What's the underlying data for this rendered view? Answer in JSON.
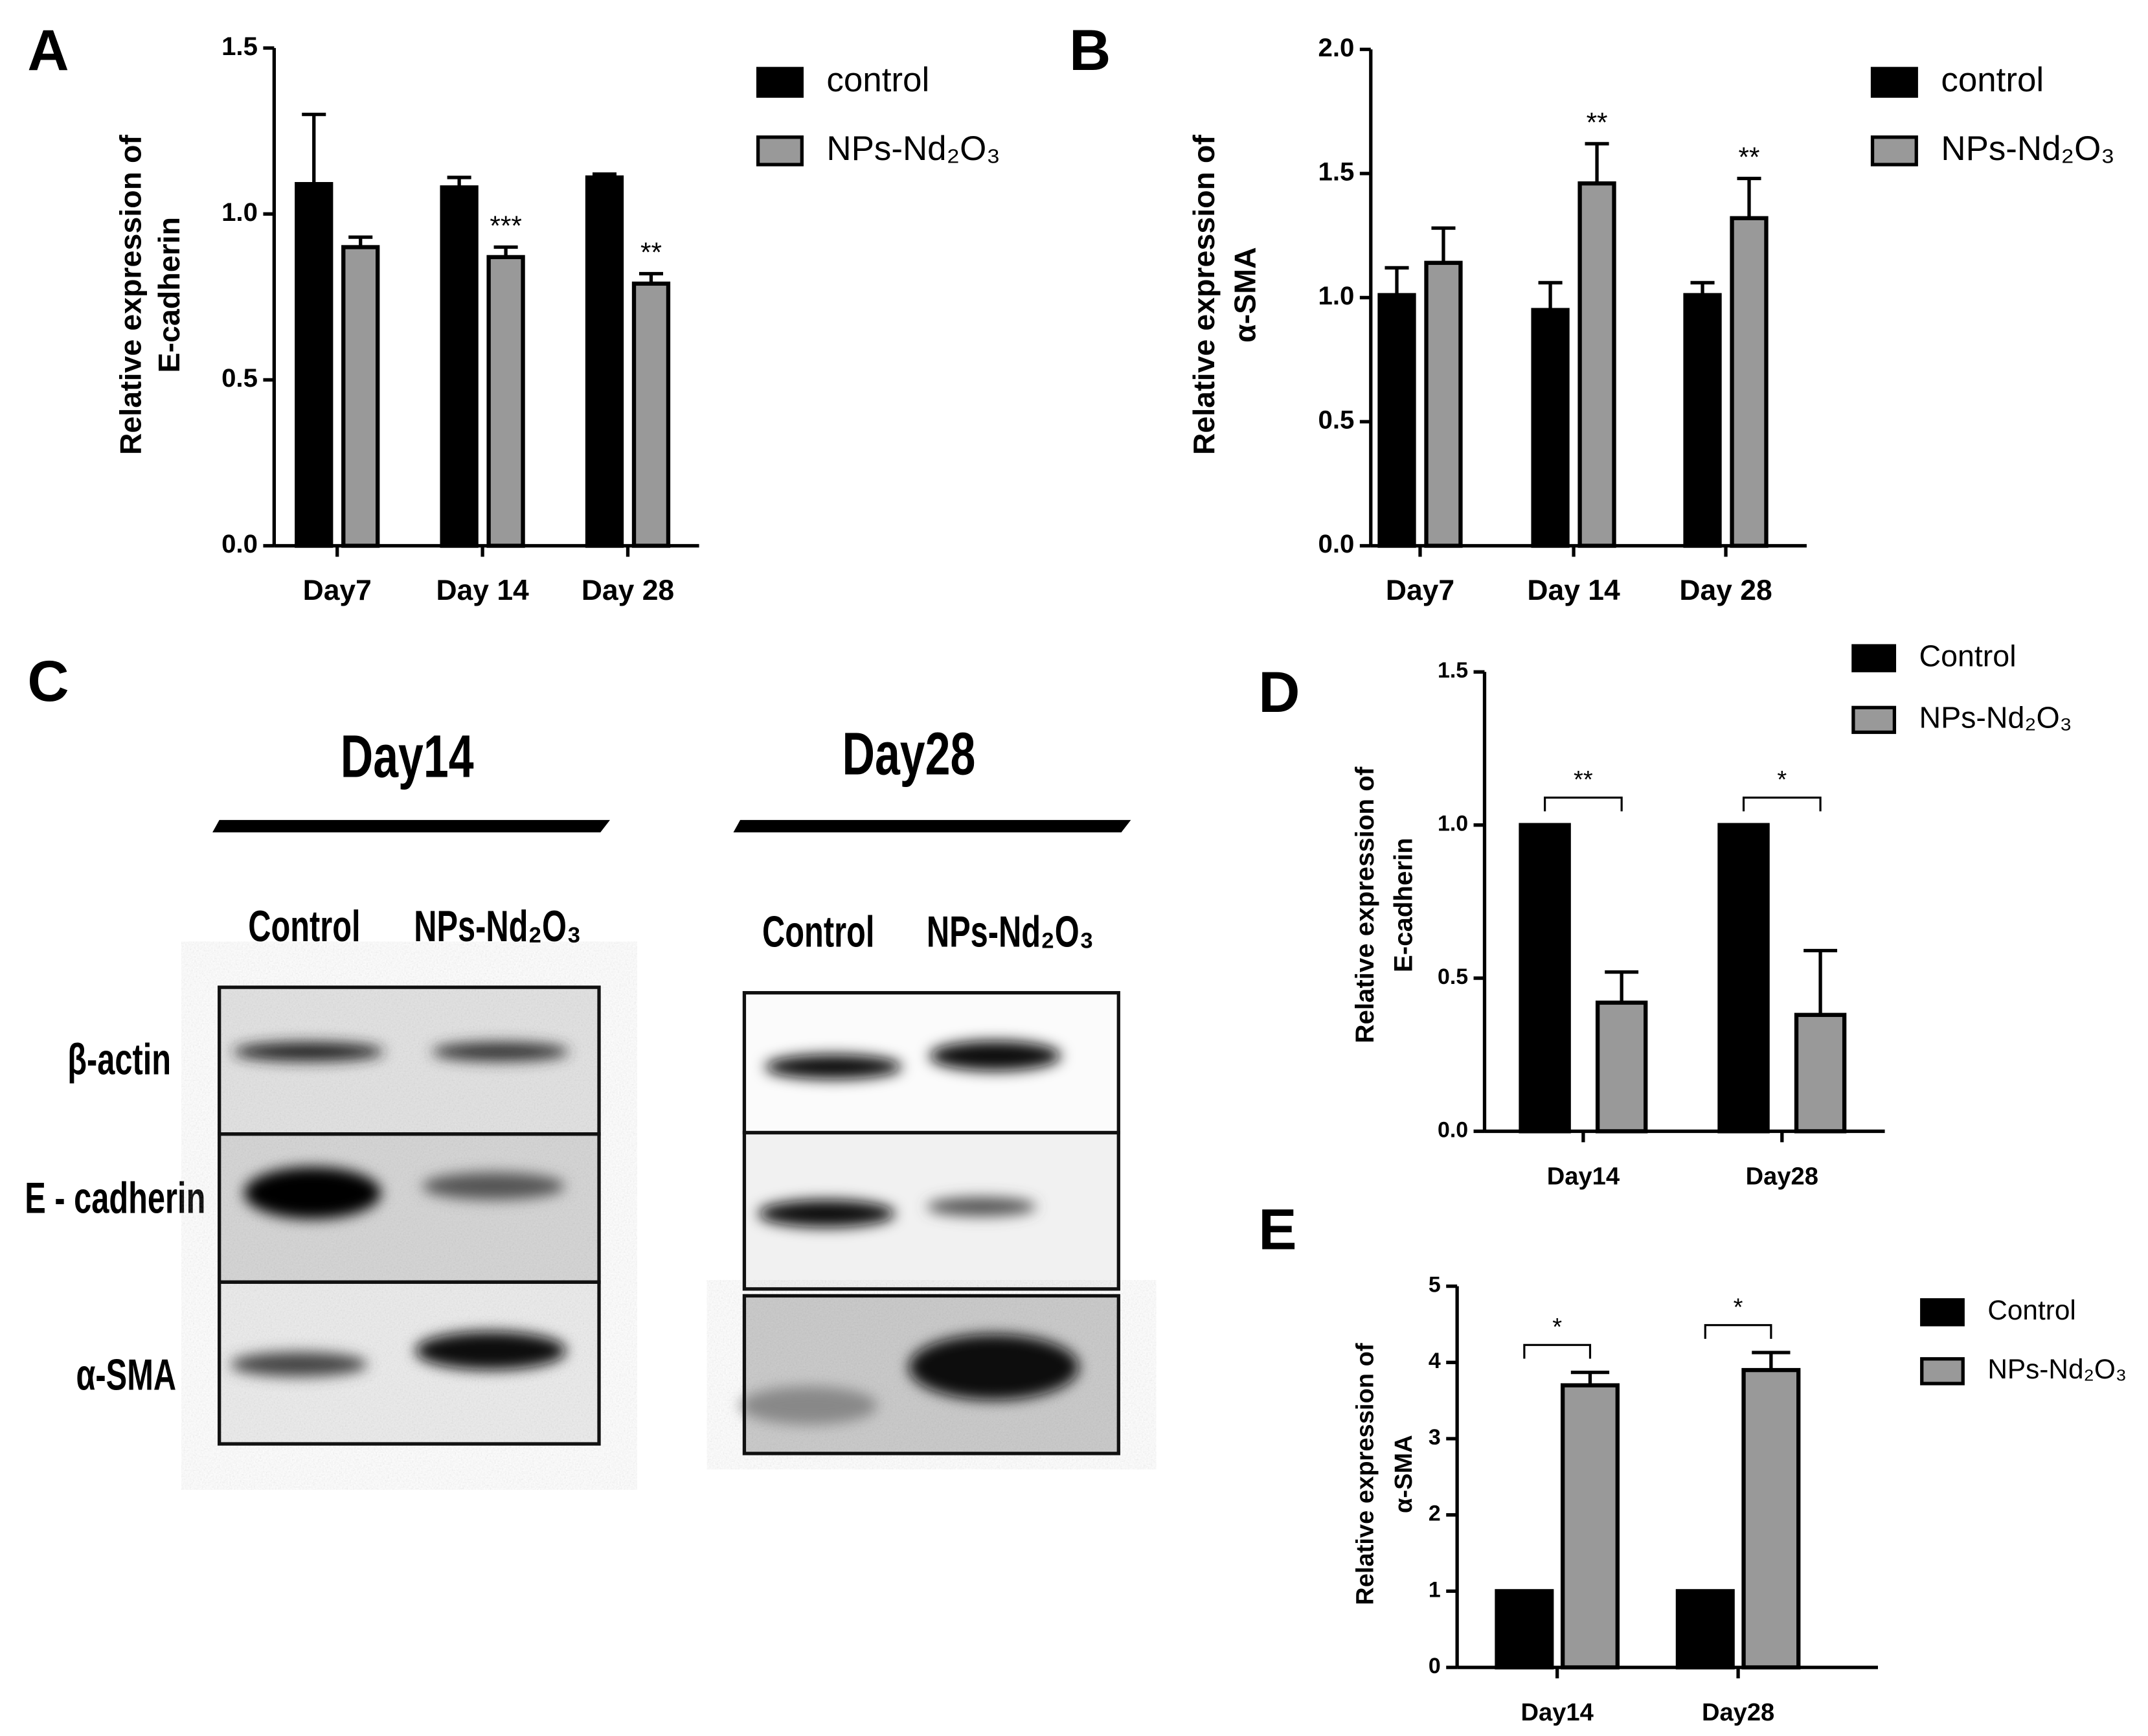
{
  "chart_data": [
    {
      "type": "bar",
      "panel": "A",
      "ylabel": [
        "Relative expression of",
        "E-cadherin"
      ],
      "categories": [
        "Day7",
        "Day 14",
        "Day 28"
      ],
      "series": [
        {
          "name": "control",
          "color": "#000000",
          "values": [
            1.09,
            1.08,
            1.11
          ],
          "errors": [
            0.21,
            0.03,
            0.01
          ]
        },
        {
          "name": "NPs-Nd₂O₃",
          "color": "#999999",
          "values": [
            0.9,
            0.87,
            0.79
          ],
          "errors": [
            0.03,
            0.03,
            0.03
          ]
        }
      ],
      "annotations": [
        null,
        "***",
        "**"
      ],
      "ylim": [
        0,
        1.5
      ],
      "yticks": [
        {
          "value": 0,
          "label": "0.0"
        },
        0.5,
        {
          "value": 1,
          "label": "1.0"
        },
        1.5
      ]
    },
    {
      "type": "bar",
      "panel": "B",
      "ylabel": [
        "Relative expression of",
        "α-SMA"
      ],
      "categories": [
        "Day7",
        "Day 14",
        "Day 28"
      ],
      "series": [
        {
          "name": "control",
          "color": "#000000",
          "values": [
            1.01,
            0.95,
            1.01
          ],
          "errors": [
            0.11,
            0.11,
            0.05
          ]
        },
        {
          "name": "NPs-Nd₂O₃",
          "color": "#999999",
          "values": [
            1.14,
            1.46,
            1.32
          ],
          "errors": [
            0.14,
            0.16,
            0.16
          ]
        }
      ],
      "annotations": [
        null,
        "**",
        "**"
      ],
      "ylim": [
        0,
        2
      ],
      "yticks": [
        {
          "value": 0,
          "label": "0.0"
        },
        0.5,
        {
          "value": 1,
          "label": "1.0"
        },
        1.5,
        {
          "value": 2,
          "label": "2.0"
        }
      ]
    },
    {
      "type": "bar",
      "panel": "D",
      "ylabel": [
        "Relative expression of",
        "E-cadherin"
      ],
      "categories": [
        "Day14",
        "Day28"
      ],
      "series": [
        {
          "name": "Control",
          "color": "#000000",
          "values": [
            1,
            1
          ]
        },
        {
          "name": "NPs-Nd₂O₃",
          "color": "#999999",
          "values": [
            0.42,
            0.38
          ],
          "errors": [
            0.1,
            0.21
          ]
        }
      ],
      "brackets": [
        "**",
        "*"
      ],
      "ylim": [
        0,
        1.5
      ],
      "yticks": [
        {
          "value": 0,
          "label": "0.0"
        },
        0.5,
        {
          "value": 1,
          "label": "1.0"
        },
        1.5
      ]
    },
    {
      "type": "bar",
      "panel": "E",
      "ylabel": [
        "Relative expression of",
        "α-SMA"
      ],
      "categories": [
        "Day14",
        "Day28"
      ],
      "series": [
        {
          "name": "Control",
          "color": "#000000",
          "values": [
            1,
            1
          ]
        },
        {
          "name": "NPs-Nd₂O₃",
          "color": "#999999",
          "values": [
            3.7,
            3.9
          ],
          "errors": [
            0.17,
            0.23
          ]
        }
      ],
      "brackets": [
        "*",
        "*"
      ],
      "ylim": [
        0,
        5
      ],
      "yticks": [
        0,
        1,
        2,
        3,
        4,
        5
      ]
    }
  ],
  "blot": {
    "panel": "C",
    "rows": [
      "β-actin",
      "E - cadherin",
      "α-SMA"
    ],
    "gels": [
      {
        "title": "Day14",
        "lanes": [
          "Control",
          "NPs-Nd₂O₃"
        ]
      },
      {
        "title": "Day28",
        "lanes": [
          "Control",
          "NPs-Nd₂O₃"
        ]
      }
    ]
  }
}
